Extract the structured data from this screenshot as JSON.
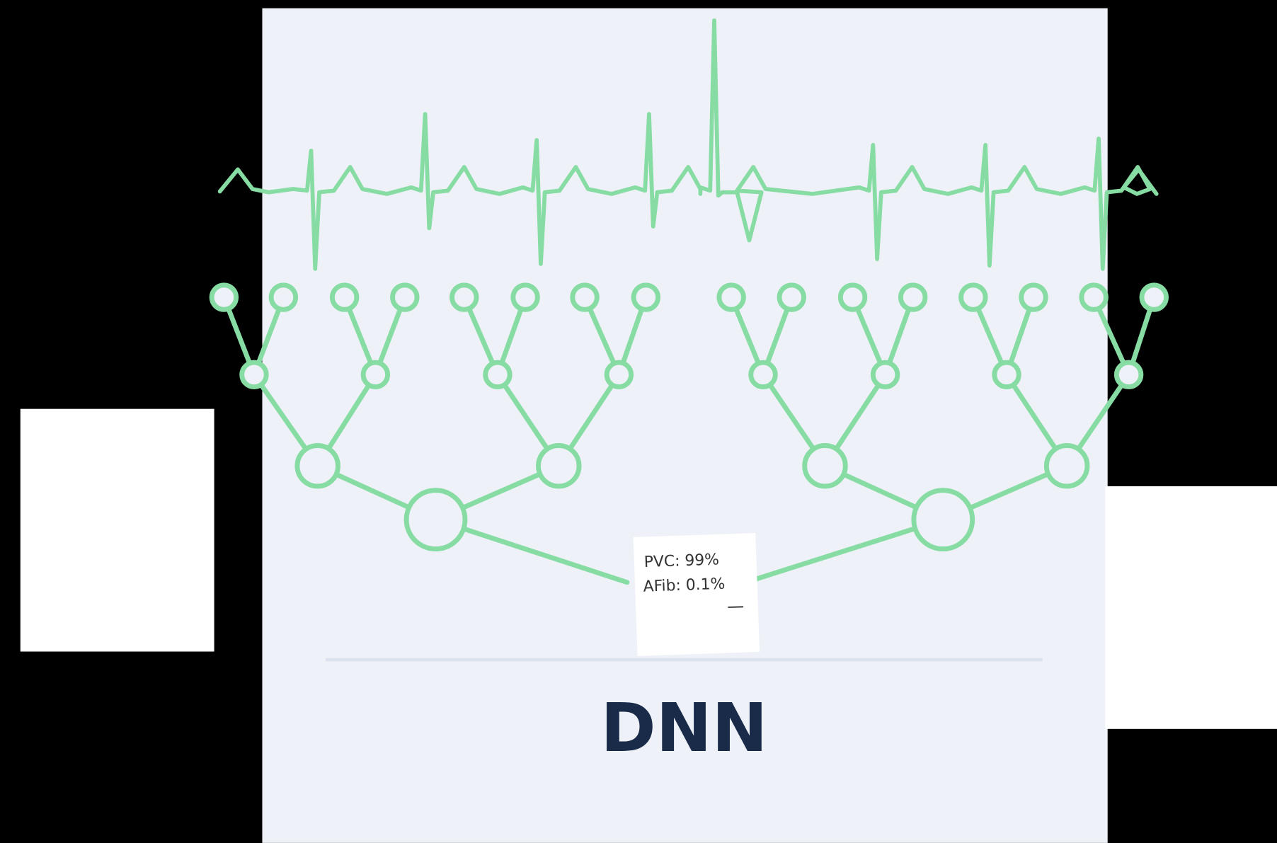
{
  "diagram": {
    "label": "DNN",
    "output": {
      "lines": [
        "PVC: 99%",
        "AFib: 0.1%"
      ]
    }
  }
}
